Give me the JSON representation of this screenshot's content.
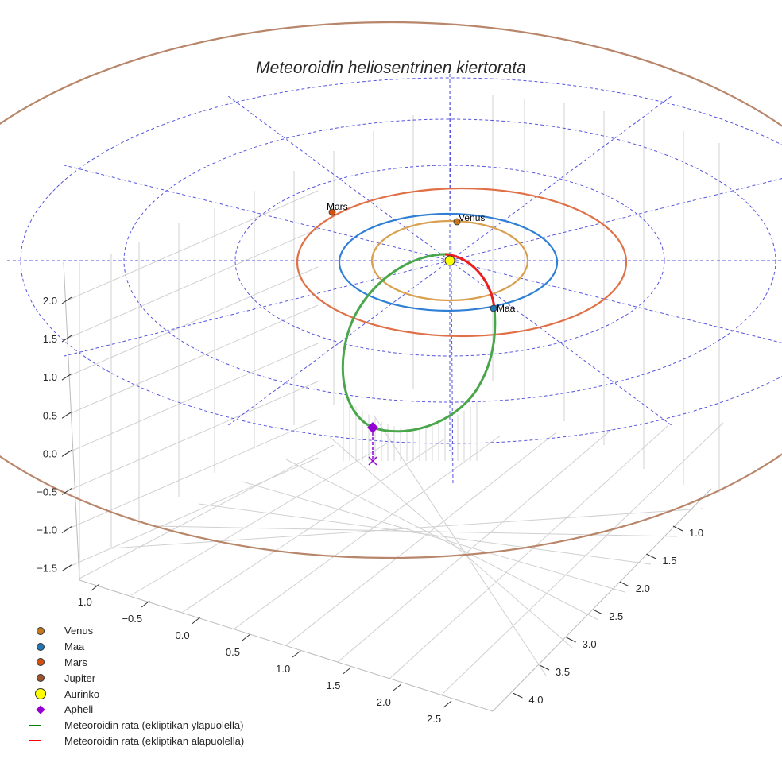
{
  "chart_data": {
    "type": "line",
    "projection": "3d",
    "title": "Meteoroidin heliosentrinen kiertorata",
    "x_ticks": [
      "−1.0",
      "−0.5",
      "0.0",
      "0.5",
      "1.0",
      "1.5",
      "2.0",
      "2.5"
    ],
    "y_ticks": [
      "1.0",
      "1.5",
      "2.0",
      "2.5",
      "3.0",
      "3.5",
      "4.0"
    ],
    "z_ticks": [
      "2.0",
      "1.5",
      "1.0",
      "0.5",
      "0.0",
      "−0.5",
      "−1.0",
      "−1.5"
    ],
    "planet_labels": {
      "venus": "Venus",
      "earth": "Maa",
      "mars": "Mars"
    },
    "legend": [
      {
        "label": "Venus",
        "marker": "circle",
        "color": "#c8781a"
      },
      {
        "label": "Maa",
        "marker": "circle",
        "color": "#1f77b4"
      },
      {
        "label": "Mars",
        "marker": "circle",
        "color": "#d4500f"
      },
      {
        "label": "Jupiter",
        "marker": "circle",
        "color": "#a0522d"
      },
      {
        "label": "Aurinko",
        "marker": "circle",
        "color": "#ffff00"
      },
      {
        "label": "Apheli",
        "marker": "diamond",
        "color": "#9400d3"
      },
      {
        "label": "Meteoroidin rata (ekliptikan yläpuolella)",
        "marker": "line",
        "color": "#008000"
      },
      {
        "label": "Meteoroidin rata (ekliptikan alapuolella)",
        "marker": "line",
        "color": "#ff0000"
      }
    ],
    "legend_position": "lower-left",
    "colors": {
      "venus_orbit": "#d9a050",
      "earth_orbit": "#2f7fd6",
      "mars_orbit": "#e07048",
      "jupiter_orbit": "#b8866a",
      "grid_dashed": "#5555dd"
    }
  }
}
